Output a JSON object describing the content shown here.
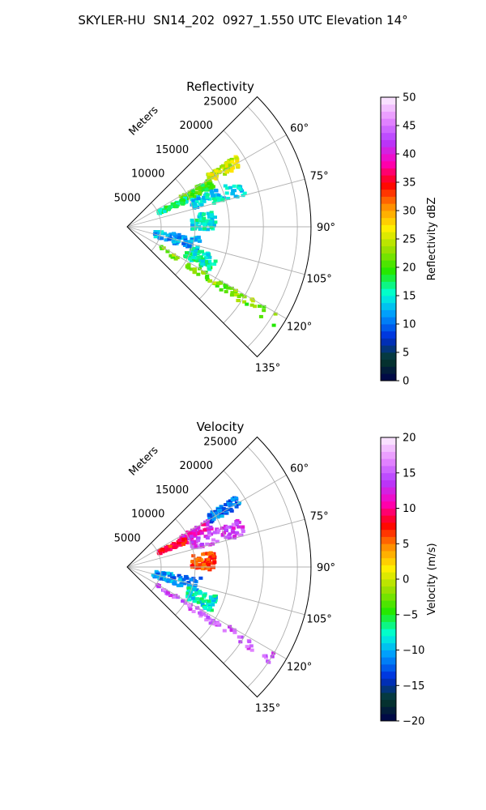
{
  "figure": {
    "title": "SKYLER-HU  SN14_202  0927_1.550 UTC Elevation 14°"
  },
  "chart_data": [
    {
      "type": "heatmap",
      "subtype": "polar-sector radar PPI",
      "title": "Reflectivity",
      "radial_label": "Meters",
      "range_ticks": [
        5000,
        10000,
        15000,
        20000,
        25000
      ],
      "range_labels": [
        "5000",
        "10000",
        "15000",
        "20000",
        "25000"
      ],
      "azimuth_ticks": [
        60,
        75,
        90,
        105,
        120,
        135
      ],
      "azimuth_labels": [
        "60°",
        "75°",
        "90°",
        "105°",
        "120°",
        "135°"
      ],
      "azimuth_range_deg": [
        45,
        135
      ],
      "range_max_m": 27000,
      "grid": true,
      "colorbar": {
        "label": "Reflectivity dBZ",
        "min": 0,
        "max": 50,
        "ticks": [
          0,
          5,
          10,
          15,
          20,
          25,
          30,
          35,
          40,
          45,
          50
        ],
        "tick_labels": [
          "0",
          "5",
          "10",
          "15",
          "20",
          "25",
          "30",
          "35",
          "40",
          "45",
          "50"
        ],
        "stops": [
          "#00004c",
          "#063c28",
          "#002cdb",
          "#0097ff",
          "#00ffd7",
          "#22e800",
          "#99e000",
          "#ffee00",
          "#ff8c00",
          "#ff0000",
          "#ff00bb",
          "#b23bff",
          "#e78cff",
          "#fdf0ff"
        ]
      },
      "echoes": [
        {
          "az": [
            57,
            62
          ],
          "range_m": [
            14000,
            19000
          ],
          "value_dbz": 25
        },
        {
          "az": [
            60,
            66
          ],
          "range_m": [
            9000,
            14000
          ],
          "value_dbz": 20
        },
        {
          "az": [
            63,
            68
          ],
          "range_m": [
            5000,
            9500
          ],
          "value_dbz": 17
        },
        {
          "az": [
            67,
            75
          ],
          "range_m": [
            10000,
            18000
          ],
          "value_dbz": 14
        },
        {
          "az": [
            80,
            92
          ],
          "range_m": [
            9500,
            13000
          ],
          "value_dbz": 15
        },
        {
          "az": [
            98,
            110
          ],
          "range_m": [
            4000,
            11000
          ],
          "value_dbz": 12
        },
        {
          "az": [
            108,
            118
          ],
          "range_m": [
            9500,
            14000
          ],
          "value_dbz": 16
        },
        {
          "az": [
            120,
            124
          ],
          "range_m": [
            5000,
            26000
          ],
          "value_dbz": 22
        }
      ]
    },
    {
      "type": "heatmap",
      "subtype": "polar-sector radar PPI",
      "title": "Velocity",
      "radial_label": "Meters",
      "range_ticks": [
        5000,
        10000,
        15000,
        20000,
        25000
      ],
      "range_labels": [
        "5000",
        "10000",
        "15000",
        "20000",
        "25000"
      ],
      "azimuth_ticks": [
        60,
        75,
        90,
        105,
        120,
        135
      ],
      "azimuth_labels": [
        "60°",
        "75°",
        "90°",
        "105°",
        "120°",
        "135°"
      ],
      "azimuth_range_deg": [
        45,
        135
      ],
      "range_max_m": 27000,
      "grid": true,
      "colorbar": {
        "label": "Velocity (m/s)",
        "min": -20,
        "max": 20,
        "ticks": [
          -20,
          -15,
          -10,
          -5,
          0,
          5,
          10,
          15,
          20
        ],
        "tick_labels": [
          "−20",
          "−15",
          "−10",
          "−5",
          "0",
          "5",
          "10",
          "15",
          "20"
        ],
        "stops": [
          "#00004c",
          "#063c28",
          "#002cdb",
          "#0097ff",
          "#00ffd7",
          "#22e800",
          "#99e000",
          "#ffee00",
          "#ff8c00",
          "#ff0000",
          "#ff00bb",
          "#b23bff",
          "#e78cff",
          "#fdf0ff"
        ]
      },
      "echoes": [
        {
          "az": [
            57,
            62
          ],
          "range_m": [
            14000,
            19000
          ],
          "value_ms": -12
        },
        {
          "az": [
            60,
            66
          ],
          "range_m": [
            9000,
            14000
          ],
          "value_ms": 12
        },
        {
          "az": [
            63,
            68
          ],
          "range_m": [
            5000,
            9500
          ],
          "value_ms": 8
        },
        {
          "az": [
            67,
            75
          ],
          "range_m": [
            10000,
            18000
          ],
          "value_ms": 14
        },
        {
          "az": [
            80,
            92
          ],
          "range_m": [
            9500,
            13000
          ],
          "value_ms": 6
        },
        {
          "az": [
            98,
            110
          ],
          "range_m": [
            4000,
            11000
          ],
          "value_ms": -11
        },
        {
          "az": [
            108,
            118
          ],
          "range_m": [
            9500,
            14000
          ],
          "value_ms": -8
        },
        {
          "az": [
            120,
            124
          ],
          "range_m": [
            5000,
            26000
          ],
          "value_ms": 15
        }
      ]
    }
  ]
}
